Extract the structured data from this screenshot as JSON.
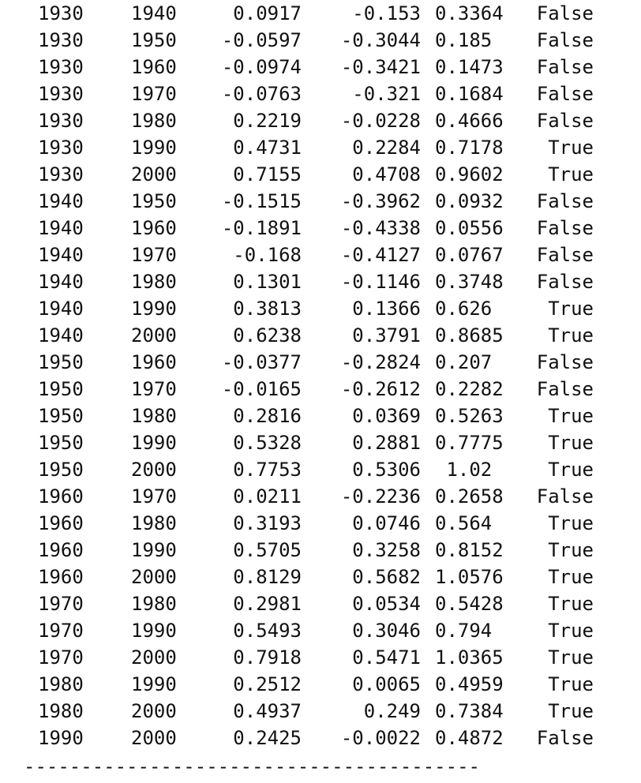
{
  "console": {
    "rows": [
      [
        "1930",
        "1940",
        "0.0917",
        "-0.153",
        "0.3364",
        "False"
      ],
      [
        "1930",
        "1950",
        "-0.0597",
        "-0.3044",
        "0.185",
        "False"
      ],
      [
        "1930",
        "1960",
        "-0.0974",
        "-0.3421",
        "0.1473",
        "False"
      ],
      [
        "1930",
        "1970",
        "-0.0763",
        "-0.321",
        "0.1684",
        "False"
      ],
      [
        "1930",
        "1980",
        "0.2219",
        "-0.0228",
        "0.4666",
        "False"
      ],
      [
        "1930",
        "1990",
        "0.4731",
        "0.2284",
        "0.7178",
        "True"
      ],
      [
        "1930",
        "2000",
        "0.7155",
        "0.4708",
        "0.9602",
        "True"
      ],
      [
        "1940",
        "1950",
        "-0.1515",
        "-0.3962",
        "0.0932",
        "False"
      ],
      [
        "1940",
        "1960",
        "-0.1891",
        "-0.4338",
        "0.0556",
        "False"
      ],
      [
        "1940",
        "1970",
        "-0.168",
        "-0.4127",
        "0.0767",
        "False"
      ],
      [
        "1940",
        "1980",
        "0.1301",
        "-0.1146",
        "0.3748",
        "False"
      ],
      [
        "1940",
        "1990",
        "0.3813",
        "0.1366",
        "0.626",
        "True"
      ],
      [
        "1940",
        "2000",
        "0.6238",
        "0.3791",
        "0.8685",
        "True"
      ],
      [
        "1950",
        "1960",
        "-0.0377",
        "-0.2824",
        "0.207",
        "False"
      ],
      [
        "1950",
        "1970",
        "-0.0165",
        "-0.2612",
        "0.2282",
        "False"
      ],
      [
        "1950",
        "1980",
        "0.2816",
        "0.0369",
        "0.5263",
        "True"
      ],
      [
        "1950",
        "1990",
        "0.5328",
        "0.2881",
        "0.7775",
        "True"
      ],
      [
        "1950",
        "2000",
        "0.7753",
        "0.5306",
        " 1.02",
        "True"
      ],
      [
        "1960",
        "1970",
        "0.0211",
        "-0.2236",
        "0.2658",
        "False"
      ],
      [
        "1960",
        "1980",
        "0.3193",
        "0.0746",
        "0.564",
        "True"
      ],
      [
        "1960",
        "1990",
        "0.5705",
        "0.3258",
        "0.8152",
        "True"
      ],
      [
        "1960",
        "2000",
        "0.8129",
        "0.5682",
        "1.0576",
        "True"
      ],
      [
        "1970",
        "1980",
        "0.2981",
        "0.0534",
        "0.5428",
        "True"
      ],
      [
        "1970",
        "1990",
        "0.5493",
        "0.3046",
        "0.794",
        "True"
      ],
      [
        "1970",
        "2000",
        "0.7918",
        "0.5471",
        "1.0365",
        "True"
      ],
      [
        "1980",
        "1990",
        "0.2512",
        "0.0065",
        "0.4959",
        "True"
      ],
      [
        "1980",
        "2000",
        "0.4937",
        "0.249",
        "0.7384",
        "True"
      ],
      [
        "1990",
        "2000",
        "0.2425",
        "-0.0022",
        "0.4872",
        "False"
      ]
    ],
    "footer_rule": "----------------------------------------"
  }
}
